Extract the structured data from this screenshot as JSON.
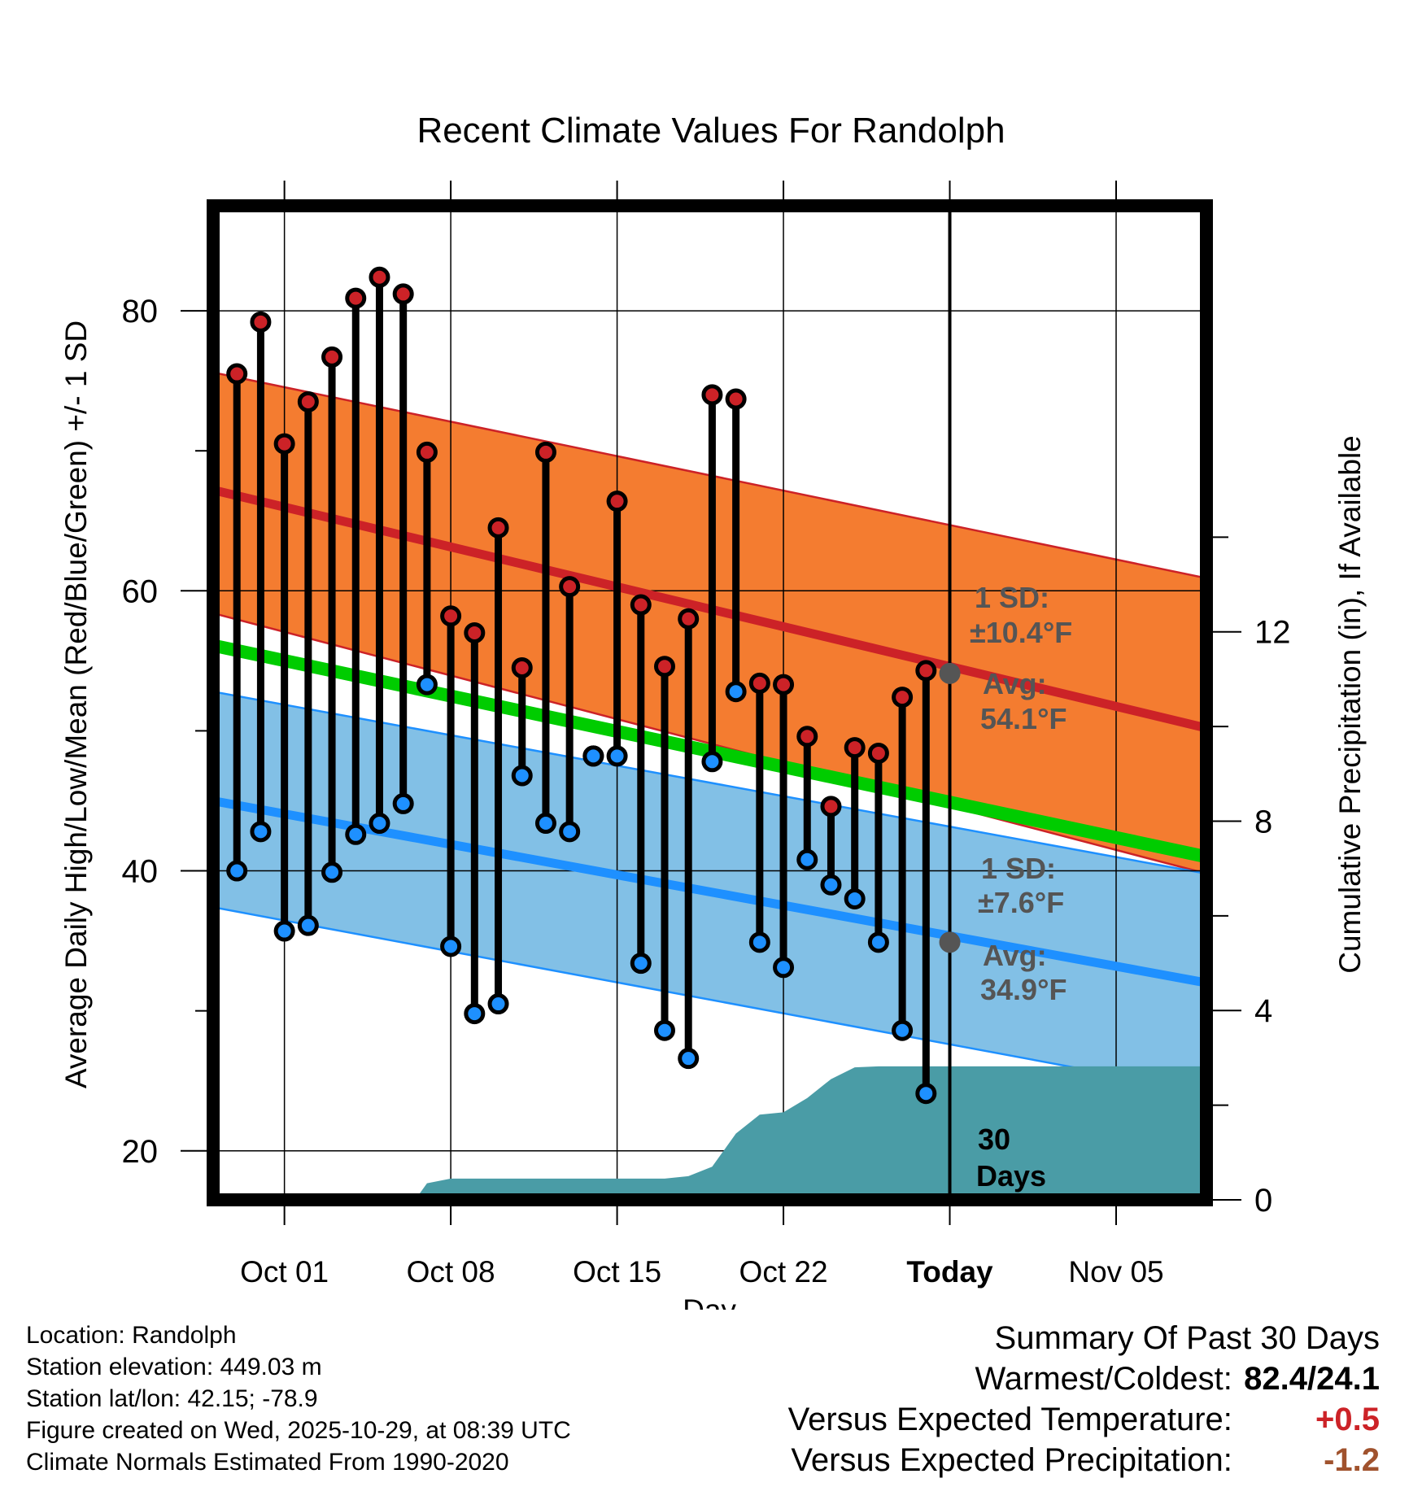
{
  "chart_data": {
    "type": "line",
    "title": "Recent Climate Values For Randolph",
    "xlabel": "Day",
    "ylabel": "Average Daily High/Low/Mean (Red/Blue/Green) +/- 1 SD",
    "y2label": "Cumulative Precipitation (in), If Available",
    "x_range": [
      -3,
      38.8
    ],
    "ylim": [
      16.5,
      87.5
    ],
    "y2lim": [
      0,
      21.0
    ],
    "xticks": [
      {
        "x": 0,
        "label": "Oct 01"
      },
      {
        "x": 7,
        "label": "Oct 08"
      },
      {
        "x": 14,
        "label": "Oct 15"
      },
      {
        "x": 21,
        "label": "Oct 22"
      },
      {
        "x": 28,
        "label": "Today"
      },
      {
        "x": 35,
        "label": "Nov 05"
      }
    ],
    "yticks": [
      20,
      40,
      60,
      80
    ],
    "y2ticks": [
      0,
      4,
      8,
      12
    ],
    "normal_high": {
      "start": 67.2,
      "end": 50.2,
      "sd_upper_start": 75.6,
      "sd_upper_end": 60.9,
      "sd_lower_start": 58.4,
      "sd_lower_end": 39.8
    },
    "normal_low": {
      "start": 45.0,
      "end": 32.0,
      "sd_upper_start": 52.8,
      "sd_upper_end": 39.8,
      "sd_lower_start": 37.4,
      "sd_lower_end": 24.2
    },
    "normal_mean": {
      "start": 56.1,
      "end": 41.0
    },
    "x_start": -3,
    "x_end": 38.8,
    "days_x": [
      -2,
      -1,
      0,
      1,
      2,
      3,
      4,
      5,
      6,
      7,
      8,
      9,
      10,
      11,
      12,
      13,
      14,
      15,
      16,
      17,
      18,
      19,
      20,
      21,
      22,
      23,
      24,
      25,
      26,
      27
    ],
    "highs": [
      75.5,
      79.2,
      70.5,
      73.5,
      76.7,
      80.9,
      82.4,
      81.2,
      69.9,
      58.2,
      57.0,
      64.5,
      54.5,
      69.9,
      60.3,
      48.2,
      66.4,
      59.0,
      54.6,
      58.0,
      74.0,
      73.7,
      53.4,
      53.3,
      49.6,
      44.6,
      48.8,
      48.4,
      52.4,
      54.3
    ],
    "lows": [
      40.0,
      42.8,
      35.7,
      36.1,
      39.9,
      42.6,
      43.4,
      44.8,
      53.3,
      34.6,
      29.8,
      30.5,
      46.8,
      43.4,
      42.8,
      48.2,
      48.2,
      33.4,
      28.6,
      26.6,
      47.8,
      52.8,
      34.9,
      33.1,
      40.8,
      39.0,
      38.0,
      34.9,
      28.6,
      24.1
    ],
    "precip_x": [
      5.5,
      6,
      7,
      8,
      9,
      10,
      11,
      12,
      13,
      14,
      15,
      16,
      17,
      18,
      19,
      20,
      21,
      22,
      23,
      24,
      25,
      26,
      27,
      28,
      29,
      30,
      38.8
    ],
    "precip": [
      0,
      0.35,
      0.45,
      0.45,
      0.45,
      0.45,
      0.45,
      0.45,
      0.45,
      0.45,
      0.45,
      0.45,
      0.5,
      0.7,
      1.4,
      1.8,
      1.85,
      2.15,
      2.55,
      2.8,
      2.82,
      2.82,
      2.82,
      2.82,
      2.82,
      2.82,
      2.82
    ],
    "today_x": 28,
    "high_marker": {
      "x": 28,
      "y": 54.1
    },
    "low_marker": {
      "x": 28,
      "y": 34.9
    },
    "annotations": {
      "high_sd_line1": "1 SD:",
      "high_sd_line2": "±10.4°F",
      "high_avg_line1": "Avg:",
      "high_avg_line2": "54.1°F",
      "low_sd_line1": "1 SD:",
      "low_sd_line2": "±7.6°F",
      "low_avg_line1": "Avg:",
      "low_avg_line2": "34.9°F",
      "days_line1": "30",
      "days_line2": "Days"
    },
    "colors": {
      "high_band": "#f47c30",
      "high_line": "#cc2227",
      "low_band": "#82c0e6",
      "low_line": "#1e90ff",
      "mean_line": "#00cc00",
      "precip_fill": "#4a9ca6",
      "high_dot": "#cc2227",
      "low_dot": "#1e90ff",
      "annotation": "#555555"
    }
  },
  "footer": {
    "location": "Location: Randolph",
    "elevation": "Station elevation: 449.03 m",
    "latlon": "Station lat/lon: 42.15; -78.9",
    "created": "Figure created on Wed, 2025-10-29, at 08:39 UTC",
    "normals": "Climate Normals Estimated From 1990-2020"
  },
  "summary": {
    "title": "Summary Of Past 30 Days",
    "warm_cold_label": "Warmest/Coldest:",
    "warm_cold_value": "82.4/24.1",
    "temp_label": "Versus Expected Temperature:",
    "temp_value": "+0.5",
    "temp_color": "#cc2227",
    "precip_label": "Versus Expected Precipitation:",
    "precip_value": "-1.2",
    "precip_color": "#a0522d"
  }
}
